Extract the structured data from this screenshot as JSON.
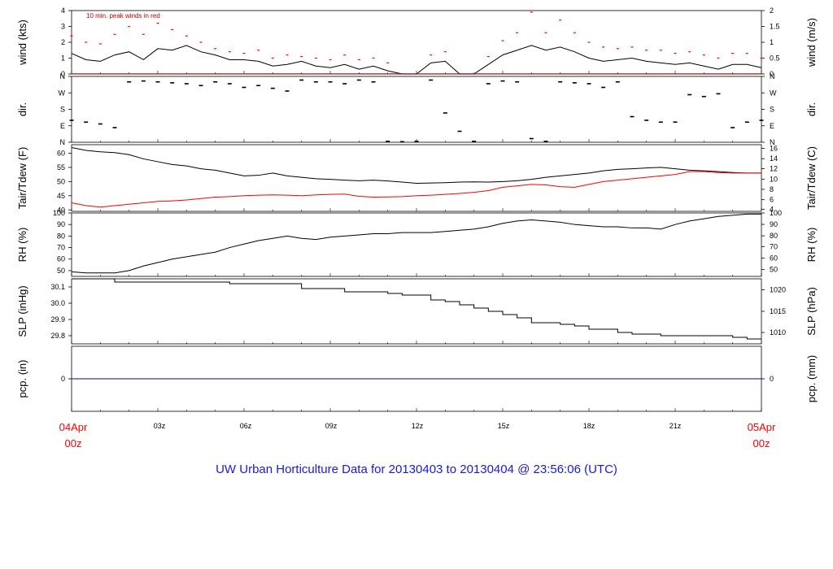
{
  "title": "UW Urban Horticulture Data for 20130403  to  20130404 @ 23:56:06  (UTC)",
  "colors": {
    "title": "#1a1ad6",
    "series_black": "#000000",
    "series_red": "#ff0000",
    "pcp_line": "#0000cc",
    "time_end_labels": "#ff0000"
  },
  "x_axis": {
    "start_label": [
      "04Apr",
      "00z"
    ],
    "end_label": [
      "05Apr",
      "00z"
    ],
    "ticks": [
      "03z",
      "06z",
      "09z",
      "12z",
      "15z",
      "18z",
      "21z"
    ]
  },
  "chart_data": [
    {
      "type": "line",
      "id": "wind",
      "ylabel": "wind (kts)",
      "ylabel_right": "wind (m/s)",
      "annotation": "10 min. peak winds in red",
      "ylim": [
        0,
        4
      ],
      "yticks": [
        "0",
        "1",
        "2",
        "3",
        "4"
      ],
      "yticks_right": [
        "0",
        "0.5",
        "1",
        "1.5",
        "2"
      ],
      "x_hours": [
        0,
        0.5,
        1,
        1.5,
        2,
        2.5,
        3,
        3.5,
        4,
        4.5,
        5,
        5.5,
        6,
        6.5,
        7,
        7.5,
        8,
        8.5,
        9,
        9.5,
        10,
        10.5,
        11,
        11.5,
        12,
        12.5,
        13,
        13.5,
        14,
        14.5,
        15,
        15.5,
        16,
        16.5,
        17,
        17.5,
        18,
        18.5,
        19,
        19.5,
        20,
        20.5,
        21,
        21.5,
        22,
        22.5,
        23,
        23.5,
        24
      ],
      "series": [
        {
          "color": "#000000",
          "values": [
            1.3,
            0.9,
            0.8,
            1.2,
            1.4,
            0.9,
            1.6,
            1.5,
            1.8,
            1.4,
            1.2,
            0.9,
            0.9,
            0.8,
            0.5,
            0.6,
            0.8,
            0.5,
            0.4,
            0.6,
            0.3,
            0.5,
            0.2,
            0.0,
            0.0,
            0.7,
            0.8,
            0.0,
            0.0,
            0.6,
            1.2,
            1.5,
            1.8,
            1.5,
            1.7,
            1.4,
            1.0,
            0.8,
            0.9,
            1.0,
            0.8,
            0.7,
            0.6,
            0.7,
            0.5,
            0.3,
            0.6,
            0.6,
            0.4
          ]
        },
        {
          "name": "10 min. peak winds",
          "color": "#ff0000",
          "values": [
            2.4,
            2.0,
            1.9,
            2.5,
            3.0,
            2.5,
            3.2,
            2.8,
            2.4,
            2.0,
            1.6,
            1.4,
            1.3,
            1.5,
            1.0,
            1.2,
            1.1,
            1.0,
            0.9,
            1.2,
            0.9,
            1.0,
            0.7,
            0.0,
            0.0,
            1.2,
            1.4,
            0.0,
            0.0,
            1.1,
            2.1,
            2.6,
            3.9,
            2.6,
            3.4,
            2.6,
            2.0,
            1.7,
            1.6,
            1.7,
            1.5,
            1.5,
            1.3,
            1.4,
            1.2,
            1.0,
            1.3,
            1.3,
            1.0
          ]
        }
      ]
    },
    {
      "type": "scatter",
      "id": "dir",
      "ylabel": "dir.",
      "ylabel_right": "dir.",
      "yticks": [
        "N",
        "E",
        "S",
        "W",
        "N"
      ],
      "yticks_right": [
        "N",
        "E",
        "S",
        "W",
        "N"
      ],
      "ylim": [
        0,
        360
      ],
      "x_hours": [
        0,
        0.5,
        1,
        1.5,
        2,
        2.5,
        3,
        3.5,
        4,
        4.5,
        5,
        5.5,
        6,
        6.5,
        7,
        7.5,
        8,
        8.5,
        9,
        9.5,
        10,
        10.5,
        11,
        11.5,
        12,
        12.5,
        13,
        13.5,
        14,
        14.5,
        15,
        15.5,
        16,
        16.5,
        17,
        17.5,
        18,
        18.5,
        19,
        19.5,
        20,
        20.5,
        21,
        21.5,
        22,
        22.5,
        23,
        23.5,
        24
      ],
      "series": [
        {
          "color": "#000000",
          "values": [
            120,
            110,
            100,
            80,
            330,
            335,
            330,
            325,
            320,
            310,
            330,
            320,
            300,
            310,
            295,
            280,
            340,
            330,
            330,
            320,
            340,
            330,
            5,
            3,
            5,
            340,
            160,
            60,
            5,
            320,
            335,
            330,
            20,
            5,
            330,
            325,
            320,
            300,
            330,
            140,
            120,
            110,
            110,
            260,
            250,
            265,
            80,
            110,
            120
          ]
        }
      ]
    },
    {
      "type": "line",
      "id": "temp",
      "ylabel": "Tair/Tdew (F)",
      "ylabel_right": "Tair/Tdew (C)",
      "ylim": [
        39.5,
        63
      ],
      "yticks": [
        "40",
        "45",
        "50",
        "55",
        "60"
      ],
      "yticks_right": [
        "4",
        "6",
        "8",
        "10",
        "12",
        "14",
        "16"
      ],
      "x_hours": [
        0,
        0.5,
        1,
        1.5,
        2,
        2.5,
        3,
        3.5,
        4,
        4.5,
        5,
        5.5,
        6,
        6.5,
        7,
        7.5,
        8,
        8.5,
        9,
        9.5,
        10,
        10.5,
        11,
        11.5,
        12,
        12.5,
        13,
        13.5,
        14,
        14.5,
        15,
        15.5,
        16,
        16.5,
        17,
        17.5,
        18,
        18.5,
        19,
        19.5,
        20,
        20.5,
        21,
        21.5,
        22,
        22.5,
        23,
        23.5,
        24
      ],
      "series": [
        {
          "name": "Tair",
          "color": "#000000",
          "values": [
            62.0,
            61.0,
            60.5,
            60.2,
            59.5,
            58.0,
            57.0,
            56.0,
            55.5,
            54.5,
            54.0,
            53.0,
            52.0,
            52.2,
            53.0,
            52.0,
            51.5,
            51.0,
            50.8,
            50.5,
            50.3,
            50.5,
            50.2,
            49.8,
            49.4,
            49.5,
            49.6,
            49.8,
            49.9,
            49.8,
            50.0,
            50.3,
            50.8,
            51.5,
            52.0,
            52.5,
            53.0,
            53.8,
            54.3,
            54.5,
            54.8,
            55.0,
            54.5,
            54.0,
            53.8,
            53.5,
            53.2,
            53.0,
            53.0
          ]
        },
        {
          "name": "Tdew",
          "color": "#ff0000",
          "values": [
            42.5,
            41.5,
            41.0,
            41.5,
            42.0,
            42.5,
            43.0,
            43.2,
            43.5,
            44.0,
            44.5,
            44.7,
            45.0,
            45.2,
            45.3,
            45.2,
            45.0,
            45.3,
            45.5,
            45.6,
            44.8,
            44.5,
            44.6,
            44.7,
            45.0,
            45.2,
            45.5,
            45.8,
            46.2,
            46.8,
            48.0,
            48.5,
            49.0,
            48.8,
            48.2,
            48.0,
            49.0,
            50.0,
            50.5,
            51.0,
            51.5,
            52.0,
            52.5,
            53.5,
            53.5,
            53.2,
            53.0,
            53.0,
            53.0
          ]
        }
      ]
    },
    {
      "type": "line",
      "id": "rh",
      "ylabel": "RH (%)",
      "ylabel_right": "RH (%)",
      "ylim": [
        45,
        100
      ],
      "yticks": [
        "50",
        "60",
        "70",
        "80",
        "90",
        "100"
      ],
      "yticks_right": [
        "50",
        "60",
        "70",
        "80",
        "90",
        "100"
      ],
      "x_hours": [
        0,
        0.5,
        1,
        1.5,
        2,
        2.5,
        3,
        3.5,
        4,
        4.5,
        5,
        5.5,
        6,
        6.5,
        7,
        7.5,
        8,
        8.5,
        9,
        9.5,
        10,
        10.5,
        11,
        11.5,
        12,
        12.5,
        13,
        13.5,
        14,
        14.5,
        15,
        15.5,
        16,
        16.5,
        17,
        17.5,
        18,
        18.5,
        19,
        19.5,
        20,
        20.5,
        21,
        21.5,
        22,
        22.5,
        23,
        23.5,
        24
      ],
      "series": [
        {
          "color": "#000000",
          "values": [
            49,
            48,
            48,
            48,
            50,
            54,
            57,
            60,
            62,
            64,
            66,
            70,
            73,
            76,
            78,
            80,
            78,
            77,
            79,
            80,
            81,
            82,
            82,
            83,
            83,
            83,
            84,
            85,
            86,
            88,
            91,
            93,
            94,
            93,
            92,
            90,
            89,
            88,
            88,
            87,
            87,
            86,
            90,
            93,
            95,
            97,
            98,
            99,
            99
          ]
        }
      ]
    },
    {
      "type": "line",
      "id": "slp",
      "ylabel": "SLP (inHg)",
      "ylabel_right": "SLP (hPa)",
      "ylim": [
        29.75,
        30.15
      ],
      "yticks": [
        "29.8",
        "29.9",
        "30.0",
        "30.1"
      ],
      "yticks_right": [
        "1010",
        "1015",
        "1020"
      ],
      "x_hours": [
        0,
        0.5,
        1,
        1.5,
        2,
        2.5,
        3,
        3.5,
        4,
        4.5,
        5,
        5.5,
        6,
        6.5,
        7,
        7.5,
        8,
        8.5,
        9,
        9.5,
        10,
        10.5,
        11,
        11.5,
        12,
        12.5,
        13,
        13.5,
        14,
        14.5,
        15,
        15.5,
        16,
        16.5,
        17,
        17.5,
        18,
        18.5,
        19,
        19.5,
        20,
        20.5,
        21,
        21.5,
        22,
        22.5,
        23,
        23.5,
        24
      ],
      "series": [
        {
          "color": "#000000",
          "values": [
            30.15,
            30.15,
            30.15,
            30.13,
            30.13,
            30.13,
            30.13,
            30.13,
            30.13,
            30.13,
            30.13,
            30.12,
            30.12,
            30.12,
            30.12,
            30.12,
            30.09,
            30.09,
            30.09,
            30.07,
            30.07,
            30.07,
            30.06,
            30.05,
            30.05,
            30.02,
            30.01,
            29.99,
            29.97,
            29.95,
            29.93,
            29.91,
            29.88,
            29.88,
            29.87,
            29.86,
            29.84,
            29.84,
            29.82,
            29.81,
            29.81,
            29.8,
            29.8,
            29.8,
            29.8,
            29.8,
            29.79,
            29.78,
            29.78
          ]
        }
      ]
    },
    {
      "type": "line",
      "id": "pcp",
      "ylabel": "pcp. (in)",
      "ylabel_right": "pcp. (mm)",
      "ylim": [
        -1,
        1
      ],
      "yticks": [
        "0"
      ],
      "yticks_right": [
        "0"
      ],
      "x_hours": [
        0,
        24
      ],
      "series": [
        {
          "color": "#0000cc",
          "values": [
            0,
            0
          ]
        }
      ]
    }
  ]
}
